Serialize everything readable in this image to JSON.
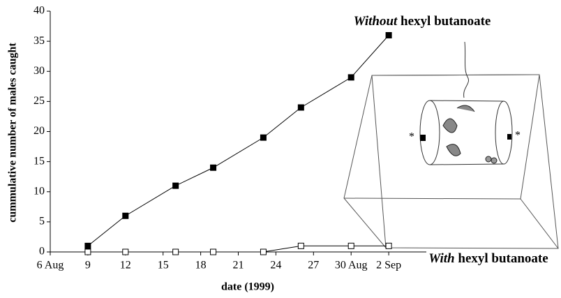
{
  "chart_data": {
    "type": "line",
    "x_label": "date (1999)",
    "y_label": "cummulative number of males caught",
    "xlim": [
      6,
      36
    ],
    "xticks": [
      {
        "value": 6,
        "label": "6 Aug"
      },
      9,
      12,
      15,
      18,
      21,
      24,
      27,
      {
        "value": 30,
        "label": "30 Aug"
      },
      {
        "value": 33,
        "label": "2 Sep"
      }
    ],
    "ylim": [
      0,
      40
    ],
    "yticks": [
      0,
      5,
      10,
      15,
      20,
      25,
      30,
      35,
      40
    ],
    "x": [
      9,
      12,
      16,
      19,
      23,
      26,
      30,
      33
    ],
    "series": [
      {
        "name": [
          "Without",
          "hexyl butanoate"
        ],
        "color": "#000000",
        "marker_fill": "#000000",
        "values": [
          1,
          6,
          11,
          14,
          19,
          24,
          29,
          36
        ]
      },
      {
        "name": [
          "With",
          "hexyl butanoate"
        ],
        "color": "#000000",
        "marker_fill": "#ffffff",
        "values": [
          0,
          0,
          0,
          0,
          0,
          1,
          1,
          1
        ]
      }
    ],
    "inset_marks": [
      "*",
      "*"
    ]
  }
}
